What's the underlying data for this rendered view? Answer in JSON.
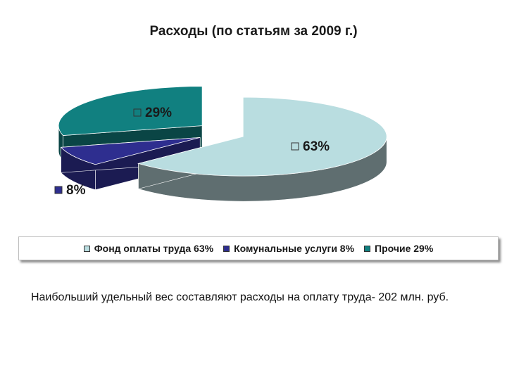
{
  "chart_data": {
    "type": "pie",
    "title": "Расходы (по статьям за 2009 г.)",
    "slices": [
      {
        "label": "Фонд оплаты труда 63%",
        "value": 63,
        "data_label": "63%",
        "color": "#b9dde0",
        "side_color": "#5f6e70"
      },
      {
        "label": "Комунальные услуги 8%",
        "value": 8,
        "data_label": "8%",
        "color": "#2e2e8f",
        "side_color": "#1b1b52"
      },
      {
        "label": "Прочие 29%",
        "value": 29,
        "data_label": "29%",
        "color": "#118080",
        "side_color": "#0a4545"
      }
    ],
    "legend_position": "bottom",
    "exploded": true,
    "three_d": true
  },
  "caption": "Наибольший удельный вес составляют расходы на оплату труда- 202 млн. руб."
}
